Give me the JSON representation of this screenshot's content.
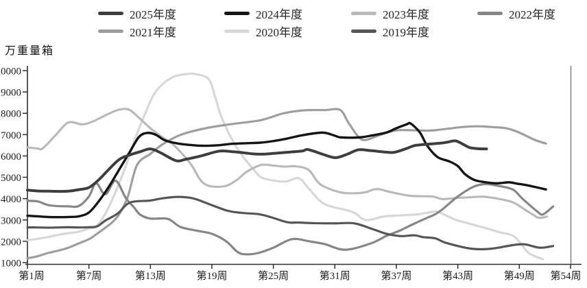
{
  "chart_data": {
    "type": "line",
    "y_axis_label": "万重量箱",
    "x_range": [
      1,
      54
    ],
    "y_range": [
      1000,
      10000
    ],
    "grid": "off",
    "legend_position": "top",
    "y_ticks": [
      1000,
      2000,
      3000,
      4000,
      5000,
      6000,
      7000,
      8000,
      9000,
      10000
    ],
    "x_ticks": [
      1,
      7,
      13,
      19,
      25,
      31,
      37,
      43,
      49,
      54
    ],
    "x_tick_labels": [
      "第1周",
      "第7周",
      "第13周",
      "第19周",
      "第25周",
      "第31周",
      "第37周",
      "第43周",
      "第49周",
      "第54周"
    ],
    "legend_rows": [
      [
        "2025年度",
        "2024年度",
        "2023年度",
        "2022年度"
      ],
      [
        "2021年度",
        "2020年度",
        "2019年度"
      ]
    ],
    "draw_order": [
      "2020年度",
      "2023年度",
      "2021年度",
      "2022年度",
      "2019年度",
      "2024年度",
      "2025年度"
    ],
    "series": [
      {
        "name": "2025年度",
        "color": "#3d3d3d",
        "width": 4,
        "points": [
          [
            1,
            4400
          ],
          [
            2,
            4360
          ],
          [
            3,
            4350
          ],
          [
            4,
            4340
          ],
          [
            5,
            4350
          ],
          [
            6,
            4420
          ],
          [
            7,
            4520
          ],
          [
            8,
            4900
          ],
          [
            9,
            5400
          ],
          [
            10,
            5850
          ],
          [
            11,
            6050
          ],
          [
            12,
            6200
          ],
          [
            13,
            6330
          ],
          [
            14,
            6150
          ],
          [
            15.5,
            5780
          ],
          [
            16.5,
            5850
          ],
          [
            18,
            6010
          ],
          [
            19.7,
            6225
          ],
          [
            21,
            6200
          ],
          [
            21.7,
            6170
          ],
          [
            23,
            6100
          ],
          [
            24,
            6085
          ],
          [
            25,
            6120
          ],
          [
            26,
            6160
          ],
          [
            27.8,
            6230
          ],
          [
            28.4,
            6300
          ],
          [
            30,
            6050
          ],
          [
            31.1,
            5920
          ],
          [
            32.3,
            6100
          ],
          [
            33.3,
            6290
          ],
          [
            34.5,
            6250
          ],
          [
            36,
            6180
          ],
          [
            36.8,
            6170
          ],
          [
            38,
            6350
          ],
          [
            38.8,
            6490
          ],
          [
            40,
            6550
          ],
          [
            41.3,
            6600
          ],
          [
            42,
            6650
          ],
          [
            42.8,
            6705
          ],
          [
            43.7,
            6500
          ],
          [
            44.2,
            6385
          ],
          [
            45,
            6340
          ],
          [
            45.8,
            6330
          ]
        ]
      },
      {
        "name": "2024年度",
        "color": "#141414",
        "width": 3.4,
        "points": [
          [
            1,
            3200
          ],
          [
            2,
            3170
          ],
          [
            3,
            3140
          ],
          [
            4,
            3130
          ],
          [
            5,
            3140
          ],
          [
            6,
            3170
          ],
          [
            7,
            3350
          ],
          [
            8,
            3900
          ],
          [
            9,
            4600
          ],
          [
            10,
            5400
          ],
          [
            11,
            6200
          ],
          [
            11.9,
            6900
          ],
          [
            12.7,
            7080
          ],
          [
            13.5,
            7000
          ],
          [
            14.4,
            6735
          ],
          [
            15.5,
            6600
          ],
          [
            16.8,
            6520
          ],
          [
            18,
            6480
          ],
          [
            19.5,
            6500
          ],
          [
            21,
            6570
          ],
          [
            22.5,
            6600
          ],
          [
            23.8,
            6625
          ],
          [
            25,
            6700
          ],
          [
            26.2,
            6800
          ],
          [
            27.8,
            6970
          ],
          [
            29.8,
            7095
          ],
          [
            31,
            6950
          ],
          [
            31.6,
            6870
          ],
          [
            33.4,
            6870
          ],
          [
            34.5,
            6950
          ],
          [
            36,
            7095
          ],
          [
            37,
            7300
          ],
          [
            38,
            7480
          ],
          [
            38.4,
            7520
          ],
          [
            39.3,
            7100
          ],
          [
            40,
            6490
          ],
          [
            41,
            5955
          ],
          [
            42.2,
            5740
          ],
          [
            43,
            5525
          ],
          [
            43.7,
            5150
          ],
          [
            44.6,
            4880
          ],
          [
            45.6,
            4775
          ],
          [
            46.8,
            4720
          ],
          [
            48,
            4765
          ],
          [
            48.8,
            4700
          ],
          [
            49.5,
            4650
          ],
          [
            50.5,
            4550
          ],
          [
            51.6,
            4430
          ]
        ]
      },
      {
        "name": "2023年度",
        "color": "#b9b9b9",
        "width": 3.2,
        "points": [
          [
            1,
            6400
          ],
          [
            2,
            6350
          ],
          [
            2.5,
            6360
          ],
          [
            3.8,
            7000
          ],
          [
            5,
            7570
          ],
          [
            6.3,
            7480
          ],
          [
            7.3,
            7600
          ],
          [
            8.6,
            7900
          ],
          [
            9.5,
            8100
          ],
          [
            10.3,
            8200
          ],
          [
            11,
            8150
          ],
          [
            11.9,
            7785
          ],
          [
            13,
            7300
          ],
          [
            14.1,
            6900
          ],
          [
            15.3,
            6500
          ],
          [
            16.9,
            5645
          ],
          [
            17.7,
            5000
          ],
          [
            18.2,
            4720
          ],
          [
            19,
            4570
          ],
          [
            20.4,
            4600
          ],
          [
            21.5,
            4900
          ],
          [
            22.4,
            5260
          ],
          [
            23.8,
            5580
          ],
          [
            25,
            5550
          ],
          [
            26.2,
            5500
          ],
          [
            27.1,
            5520
          ],
          [
            28.4,
            5360
          ],
          [
            29.3,
            4800
          ],
          [
            30,
            4555
          ],
          [
            31.6,
            4290
          ],
          [
            33,
            4250
          ],
          [
            34,
            4300
          ],
          [
            35.1,
            4450
          ],
          [
            36.5,
            4300
          ],
          [
            38.4,
            4130
          ],
          [
            40.5,
            4100
          ],
          [
            41.5,
            3980
          ],
          [
            42.8,
            4030
          ],
          [
            44,
            4060
          ],
          [
            45.5,
            4090
          ],
          [
            47.1,
            3980
          ],
          [
            48.4,
            3820
          ],
          [
            49.5,
            3500
          ],
          [
            50.3,
            3260
          ],
          [
            50.9,
            3100
          ],
          [
            51.7,
            3160
          ]
        ]
      },
      {
        "name": "2022年度",
        "color": "#868686",
        "width": 3.2,
        "points": [
          [
            1,
            3900
          ],
          [
            2,
            3870
          ],
          [
            3,
            3700
          ],
          [
            4,
            3650
          ],
          [
            5,
            3640
          ],
          [
            6,
            3650
          ],
          [
            7,
            4100
          ],
          [
            7.7,
            4720
          ],
          [
            8.6,
            4200
          ],
          [
            9.6,
            4840
          ],
          [
            10.6,
            4030
          ],
          [
            11.4,
            3590
          ],
          [
            12,
            3250
          ],
          [
            13,
            3065
          ],
          [
            14.7,
            3050
          ],
          [
            15.9,
            2680
          ],
          [
            17.5,
            2500
          ],
          [
            19,
            2350
          ],
          [
            20.4,
            2000
          ],
          [
            21.5,
            1500
          ],
          [
            22.3,
            1390
          ],
          [
            23.5,
            1450
          ],
          [
            25,
            1700
          ],
          [
            26.8,
            2100
          ],
          [
            28.5,
            2000
          ],
          [
            30,
            1870
          ],
          [
            32,
            1605
          ],
          [
            34.5,
            1900
          ],
          [
            36,
            2245
          ],
          [
            37.4,
            2515
          ],
          [
            38.8,
            2840
          ],
          [
            40,
            3100
          ],
          [
            40.8,
            3270
          ],
          [
            41.5,
            3500
          ],
          [
            43,
            4100
          ],
          [
            44.5,
            4550
          ],
          [
            45.7,
            4680
          ],
          [
            47,
            4595
          ],
          [
            48.4,
            4420
          ],
          [
            49.3,
            4000
          ],
          [
            50.7,
            3420
          ],
          [
            51.3,
            3260
          ],
          [
            52.3,
            3635
          ]
        ]
      },
      {
        "name": "2021年度",
        "color": "#9e9e9e",
        "width": 3.2,
        "points": [
          [
            1,
            1200
          ],
          [
            2,
            1300
          ],
          [
            3,
            1450
          ],
          [
            4,
            1560
          ],
          [
            5,
            1700
          ],
          [
            6,
            1900
          ],
          [
            7,
            2100
          ],
          [
            7.7,
            2320
          ],
          [
            8.5,
            2600
          ],
          [
            9.3,
            2900
          ],
          [
            10,
            3300
          ],
          [
            10.8,
            4100
          ],
          [
            11.7,
            5580
          ],
          [
            13,
            6100
          ],
          [
            14.2,
            6550
          ],
          [
            16,
            7000
          ],
          [
            18.4,
            7300
          ],
          [
            21,
            7500
          ],
          [
            23.8,
            7680
          ],
          [
            26,
            8000
          ],
          [
            28,
            8140
          ],
          [
            30,
            8150
          ],
          [
            31.5,
            8160
          ],
          [
            32.3,
            7580
          ],
          [
            33.3,
            6900
          ],
          [
            34,
            6750
          ],
          [
            35.5,
            7000
          ],
          [
            37,
            7200
          ],
          [
            39,
            7200
          ],
          [
            40.5,
            7195
          ],
          [
            43.4,
            7355
          ],
          [
            45,
            7390
          ],
          [
            46.5,
            7350
          ],
          [
            47.8,
            7290
          ],
          [
            49,
            7095
          ],
          [
            50.4,
            6775
          ],
          [
            51.6,
            6580
          ]
        ]
      },
      {
        "name": "2020年度",
        "color": "#d7d7d7",
        "width": 3.2,
        "points": [
          [
            1,
            2050
          ],
          [
            2,
            2120
          ],
          [
            3,
            2200
          ],
          [
            4,
            2300
          ],
          [
            5,
            2380
          ],
          [
            6,
            2450
          ],
          [
            7,
            2600
          ],
          [
            7.7,
            2700
          ],
          [
            8.5,
            3200
          ],
          [
            9.5,
            4200
          ],
          [
            10.5,
            5400
          ],
          [
            11.5,
            6800
          ],
          [
            12.5,
            8000
          ],
          [
            13.5,
            9000
          ],
          [
            15,
            9650
          ],
          [
            16.5,
            9840
          ],
          [
            17.5,
            9830
          ],
          [
            18.7,
            9600
          ],
          [
            19.3,
            8800
          ],
          [
            19.8,
            8000
          ],
          [
            20.5,
            7200
          ],
          [
            21.3,
            6500
          ],
          [
            21.7,
            6200
          ],
          [
            22.3,
            5800
          ],
          [
            23.2,
            5300
          ],
          [
            23.8,
            5000
          ],
          [
            25,
            4850
          ],
          [
            26.2,
            4800
          ],
          [
            27.5,
            4950
          ],
          [
            28.5,
            4450
          ],
          [
            30,
            3745
          ],
          [
            32.7,
            3380
          ],
          [
            34,
            3000
          ],
          [
            35.8,
            3165
          ],
          [
            37.6,
            3220
          ],
          [
            39.2,
            3270
          ],
          [
            40.8,
            3400
          ],
          [
            41.3,
            3335
          ],
          [
            42.8,
            3010
          ],
          [
            44.4,
            2795
          ],
          [
            46,
            2580
          ],
          [
            47.1,
            2420
          ],
          [
            48.4,
            2260
          ],
          [
            49.3,
            1800
          ],
          [
            50,
            1425
          ],
          [
            51.3,
            1160
          ]
        ]
      },
      {
        "name": "2019年度",
        "color": "#565656",
        "width": 3.2,
        "points": [
          [
            1,
            2650
          ],
          [
            2,
            2650
          ],
          [
            3,
            2640
          ],
          [
            4,
            2650
          ],
          [
            5,
            2660
          ],
          [
            6,
            2650
          ],
          [
            7,
            2660
          ],
          [
            7.8,
            2700
          ],
          [
            8.6,
            2970
          ],
          [
            9.8,
            3300
          ],
          [
            11,
            3815
          ],
          [
            12.9,
            3905
          ],
          [
            14,
            4000
          ],
          [
            15.5,
            4080
          ],
          [
            17.1,
            4020
          ],
          [
            18.7,
            3750
          ],
          [
            20.2,
            3480
          ],
          [
            21,
            3385
          ],
          [
            22.2,
            3320
          ],
          [
            23.6,
            3270
          ],
          [
            24.9,
            3110
          ],
          [
            26.4,
            2890
          ],
          [
            27.4,
            2880
          ],
          [
            29,
            2850
          ],
          [
            31,
            2840
          ],
          [
            32.9,
            2840
          ],
          [
            34.7,
            2570
          ],
          [
            36,
            2355
          ],
          [
            37.4,
            2245
          ],
          [
            38.8,
            2280
          ],
          [
            39.6,
            2195
          ],
          [
            40.8,
            2140
          ],
          [
            41.8,
            1935
          ],
          [
            44.3,
            1655
          ],
          [
            46.3,
            1655
          ],
          [
            48.3,
            1815
          ],
          [
            49.5,
            1860
          ],
          [
            51,
            1700
          ],
          [
            52.3,
            1780
          ]
        ]
      }
    ]
  }
}
